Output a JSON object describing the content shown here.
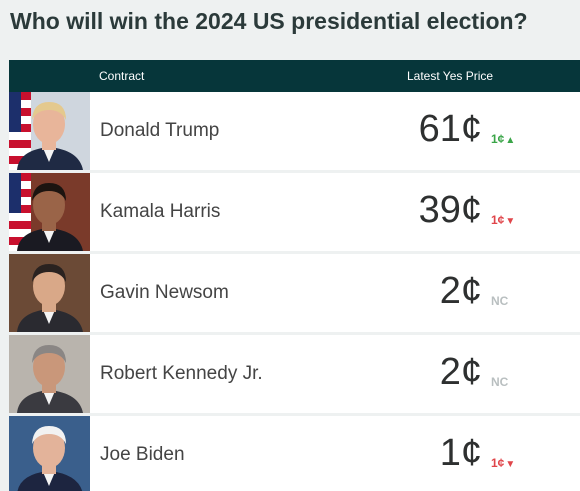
{
  "title": "Who will win the 2024 US presidential election?",
  "header": {
    "contract": "Contract",
    "price": "Latest Yes Price"
  },
  "rows": [
    {
      "name": "Donald Trump",
      "price": "61¢",
      "change": "1¢",
      "direction": "up",
      "flag": true,
      "skin": "#e8b59a",
      "hair": "#e4c98e",
      "suit": "#1f2a44",
      "bg": "#cfd6de"
    },
    {
      "name": "Kamala Harris",
      "price": "39¢",
      "change": "1¢",
      "direction": "down",
      "flag": true,
      "skin": "#9a6448",
      "hair": "#1c1410",
      "suit": "#1a1a22",
      "bg": "#7a3a2a"
    },
    {
      "name": "Gavin Newsom",
      "price": "2¢",
      "change": "NC",
      "direction": "nc",
      "flag": false,
      "skin": "#d9a888",
      "hair": "#2a2220",
      "suit": "#2a2a30",
      "bg": "#6b4a36"
    },
    {
      "name": "Robert Kennedy Jr.",
      "price": "2¢",
      "change": "NC",
      "direction": "nc",
      "flag": false,
      "skin": "#c9977a",
      "hair": "#8a8684",
      "suit": "#3a3a40",
      "bg": "#b9b4ad"
    },
    {
      "name": "Joe Biden",
      "price": "1¢",
      "change": "1¢",
      "direction": "down",
      "flag": false,
      "skin": "#e3b39a",
      "hair": "#f2f2f2",
      "suit": "#1d2540",
      "bg": "#3a5f8c"
    }
  ]
}
